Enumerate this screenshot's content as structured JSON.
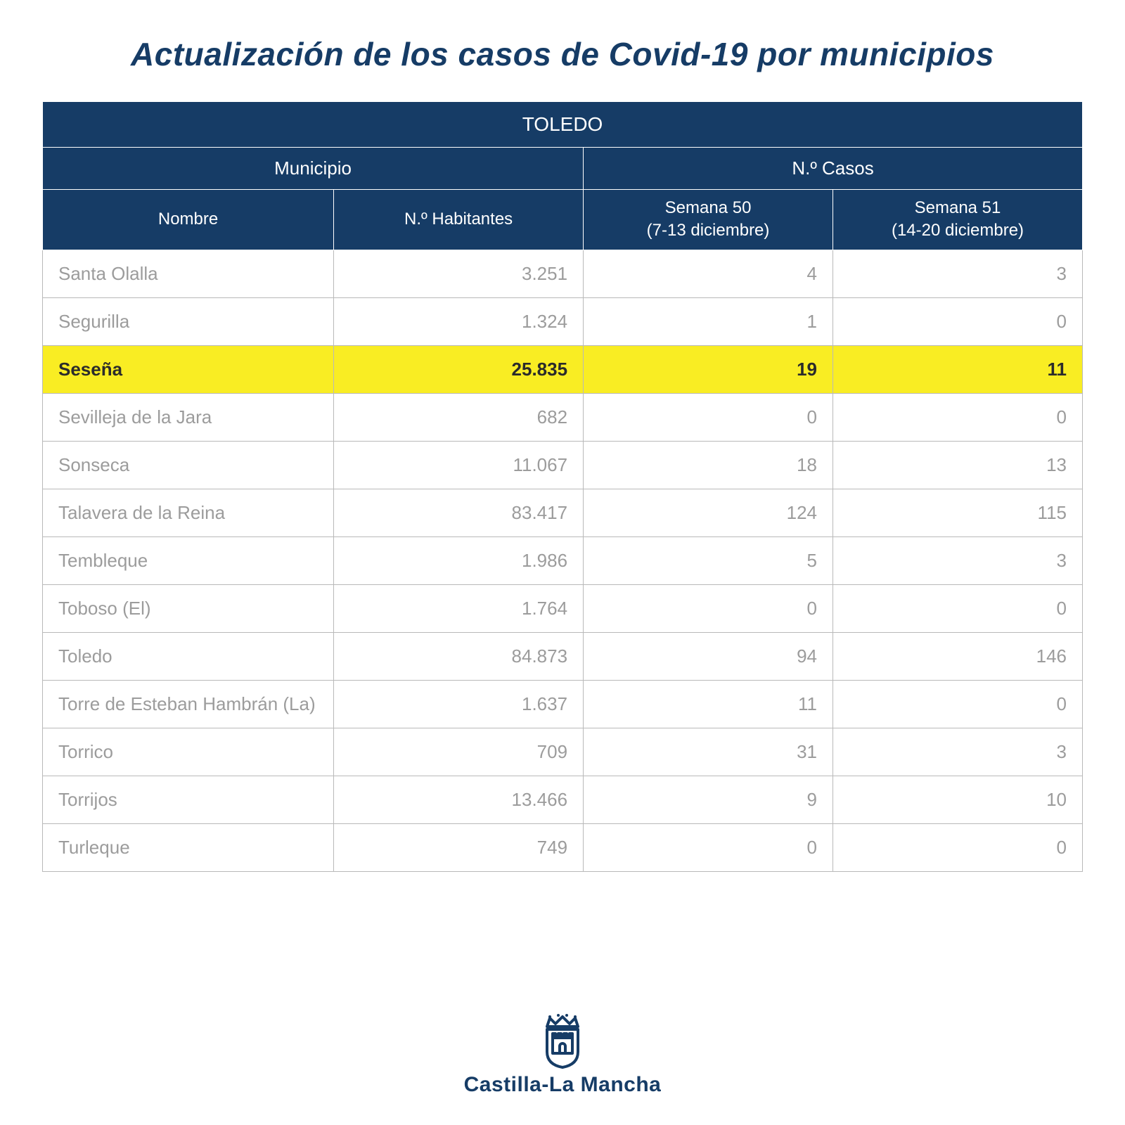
{
  "title": "Actualización de los casos de Covid-19 por municipios",
  "province": "TOLEDO",
  "headers": {
    "municipio": "Municipio",
    "casos": "N.º Casos",
    "nombre": "Nombre",
    "habitantes": "N.º Habitantes",
    "semana50_a": "Semana 50",
    "semana50_b": "(7-13 diciembre)",
    "semana51_a": "Semana 51",
    "semana51_b": "(14-20 diciembre)"
  },
  "columns": {
    "col1_width_pct": 28,
    "col2_width_pct": 24,
    "col3_width_pct": 24,
    "col4_width_pct": 24
  },
  "rows": [
    {
      "name": "Santa Olalla",
      "hab": "3.251",
      "s50": "4",
      "s51": "3",
      "hl": false
    },
    {
      "name": "Segurilla",
      "hab": "1.324",
      "s50": "1",
      "s51": "0",
      "hl": false
    },
    {
      "name": "Seseña",
      "hab": "25.835",
      "s50": "19",
      "s51": "11",
      "hl": true
    },
    {
      "name": "Sevilleja de la Jara",
      "hab": "682",
      "s50": "0",
      "s51": "0",
      "hl": false
    },
    {
      "name": "Sonseca",
      "hab": "11.067",
      "s50": "18",
      "s51": "13",
      "hl": false
    },
    {
      "name": "Talavera de la Reina",
      "hab": "83.417",
      "s50": "124",
      "s51": "115",
      "hl": false
    },
    {
      "name": "Tembleque",
      "hab": "1.986",
      "s50": "5",
      "s51": "3",
      "hl": false
    },
    {
      "name": "Toboso (El)",
      "hab": "1.764",
      "s50": "0",
      "s51": "0",
      "hl": false
    },
    {
      "name": "Toledo",
      "hab": "84.873",
      "s50": "94",
      "s51": "146",
      "hl": false
    },
    {
      "name": "Torre de Esteban Hambrán (La)",
      "hab": "1.637",
      "s50": "11",
      "s51": "0",
      "hl": false
    },
    {
      "name": "Torrico",
      "hab": "709",
      "s50": "31",
      "s51": "3",
      "hl": false
    },
    {
      "name": "Torrijos",
      "hab": "13.466",
      "s50": "9",
      "s51": "10",
      "hl": false
    },
    {
      "name": "Turleque",
      "hab": "749",
      "s50": "0",
      "s51": "0",
      "hl": false
    }
  ],
  "footer": {
    "region": "Castilla-La Mancha"
  },
  "style": {
    "title_color": "#163c66",
    "header_bg": "#163c66",
    "header_fg": "#ffffff",
    "cell_fg": "#9c9c9c",
    "highlight_bg": "#f9ed23",
    "highlight_fg": "#2b2b2b",
    "border_color": "#b9b9b9",
    "title_fontsize": 46,
    "header_fontsize": 26,
    "cell_fontsize": 26,
    "region_fontsize": 30
  }
}
